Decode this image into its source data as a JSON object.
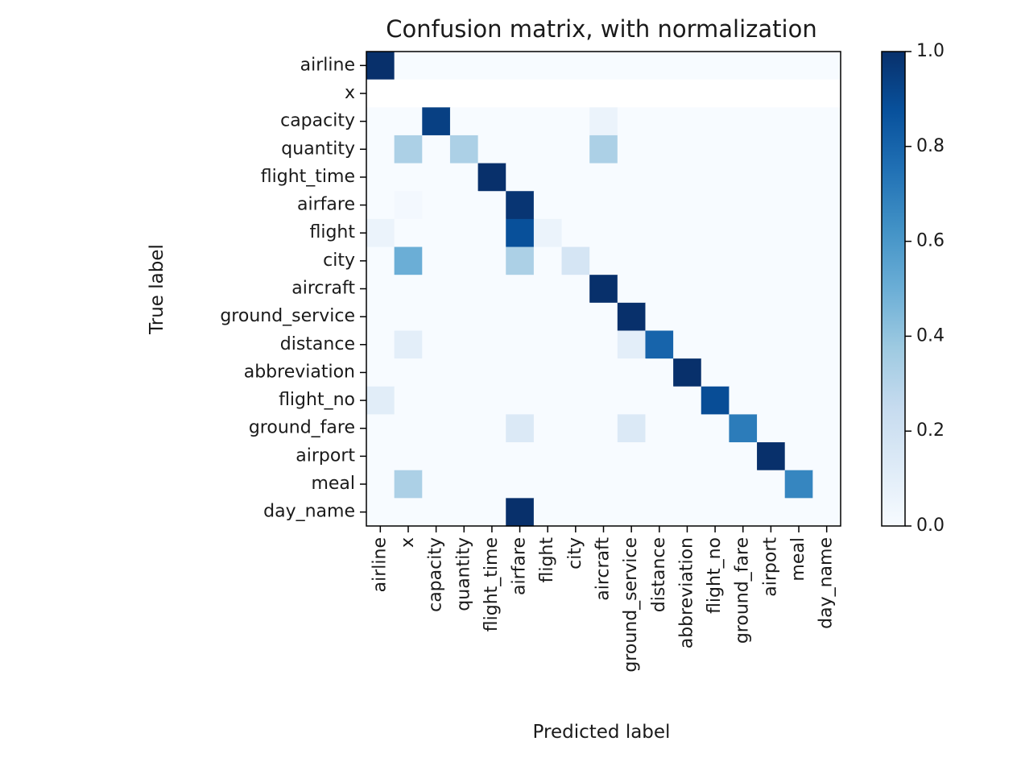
{
  "chart_data": {
    "type": "heatmap",
    "title": "Confusion matrix, with normalization",
    "xlabel": "Predicted label",
    "ylabel": "True label",
    "labels": [
      "airline",
      "x",
      "capacity",
      "quantity",
      "flight_time",
      "airfare",
      "flight",
      "city",
      "aircraft",
      "ground_service",
      "distance",
      "abbreviation",
      "flight_no",
      "ground_fare",
      "airport",
      "meal",
      "day_name"
    ],
    "matrix": [
      [
        1.0,
        0.0,
        0.0,
        0.0,
        0.0,
        0.0,
        0.0,
        0.0,
        0.0,
        0.0,
        0.0,
        0.0,
        0.0,
        0.0,
        0.0,
        0.0,
        0.0
      ],
      [
        null,
        null,
        null,
        null,
        null,
        null,
        null,
        null,
        null,
        null,
        null,
        null,
        null,
        null,
        null,
        null,
        null
      ],
      [
        0.0,
        0.0,
        0.94,
        0.0,
        0.0,
        0.0,
        0.0,
        0.0,
        0.06,
        0.0,
        0.0,
        0.0,
        0.0,
        0.0,
        0.0,
        0.0,
        0.0
      ],
      [
        0.0,
        0.33,
        0.0,
        0.33,
        0.0,
        0.0,
        0.0,
        0.0,
        0.33,
        0.0,
        0.0,
        0.0,
        0.0,
        0.0,
        0.0,
        0.0,
        0.0
      ],
      [
        0.0,
        0.0,
        0.0,
        0.0,
        1.0,
        0.0,
        0.0,
        0.0,
        0.0,
        0.0,
        0.0,
        0.0,
        0.0,
        0.0,
        0.0,
        0.0,
        0.0
      ],
      [
        0.0,
        0.02,
        0.0,
        0.0,
        0.0,
        0.98,
        0.0,
        0.0,
        0.0,
        0.0,
        0.0,
        0.0,
        0.0,
        0.0,
        0.0,
        0.0,
        0.0
      ],
      [
        0.06,
        0.0,
        0.0,
        0.0,
        0.0,
        0.88,
        0.06,
        0.0,
        0.0,
        0.0,
        0.0,
        0.0,
        0.0,
        0.0,
        0.0,
        0.0,
        0.0
      ],
      [
        0.0,
        0.5,
        0.0,
        0.0,
        0.0,
        0.33,
        0.0,
        0.17,
        0.0,
        0.0,
        0.0,
        0.0,
        0.0,
        0.0,
        0.0,
        0.0,
        0.0
      ],
      [
        0.0,
        0.0,
        0.0,
        0.0,
        0.0,
        0.0,
        0.0,
        0.0,
        1.0,
        0.0,
        0.0,
        0.0,
        0.0,
        0.0,
        0.0,
        0.0,
        0.0
      ],
      [
        0.0,
        0.0,
        0.0,
        0.0,
        0.0,
        0.0,
        0.0,
        0.0,
        0.0,
        1.0,
        0.0,
        0.0,
        0.0,
        0.0,
        0.0,
        0.0,
        0.0
      ],
      [
        0.0,
        0.1,
        0.0,
        0.0,
        0.0,
        0.0,
        0.0,
        0.0,
        0.0,
        0.1,
        0.8,
        0.0,
        0.0,
        0.0,
        0.0,
        0.0,
        0.0
      ],
      [
        0.0,
        0.0,
        0.0,
        0.0,
        0.0,
        0.0,
        0.0,
        0.0,
        0.0,
        0.0,
        0.0,
        1.0,
        0.0,
        0.0,
        0.0,
        0.0,
        0.0
      ],
      [
        0.11,
        0.0,
        0.0,
        0.0,
        0.0,
        0.0,
        0.0,
        0.0,
        0.0,
        0.0,
        0.0,
        0.0,
        0.89,
        0.0,
        0.0,
        0.0,
        0.0
      ],
      [
        0.0,
        0.0,
        0.0,
        0.0,
        0.0,
        0.14,
        0.0,
        0.0,
        0.0,
        0.14,
        0.0,
        0.0,
        0.0,
        0.71,
        0.0,
        0.0,
        0.0
      ],
      [
        0.0,
        0.0,
        0.0,
        0.0,
        0.0,
        0.0,
        0.0,
        0.0,
        0.0,
        0.0,
        0.0,
        0.0,
        0.0,
        0.0,
        1.0,
        0.0,
        0.0
      ],
      [
        0.0,
        0.33,
        0.0,
        0.0,
        0.0,
        0.0,
        0.0,
        0.0,
        0.0,
        0.0,
        0.0,
        0.0,
        0.0,
        0.0,
        0.0,
        0.67,
        0.0
      ],
      [
        0.0,
        0.0,
        0.0,
        0.0,
        0.0,
        1.0,
        0.0,
        0.0,
        0.0,
        0.0,
        0.0,
        0.0,
        0.0,
        0.0,
        0.0,
        0.0,
        0.0
      ]
    ],
    "colorbar": {
      "colormap": "Blues",
      "range": [
        0.0,
        1.0
      ],
      "ticks": [
        "0.0",
        "0.2",
        "0.4",
        "0.6",
        "0.8",
        "1.0"
      ]
    },
    "grid": false,
    "legend": "colorbar-right"
  }
}
